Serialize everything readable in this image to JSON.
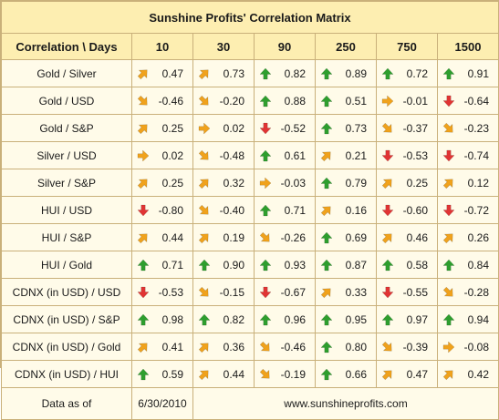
{
  "title": "Sunshine Profits' Correlation Matrix",
  "header": {
    "corner": "Correlation \\ Days",
    "periods": [
      "10",
      "30",
      "90",
      "250",
      "750",
      "1500"
    ]
  },
  "rows": [
    {
      "label": "Gold / Silver",
      "cells": [
        {
          "value": "0.47",
          "arrow": "up-right"
        },
        {
          "value": "0.73",
          "arrow": "up-right"
        },
        {
          "value": "0.82",
          "arrow": "up"
        },
        {
          "value": "0.89",
          "arrow": "up"
        },
        {
          "value": "0.72",
          "arrow": "up"
        },
        {
          "value": "0.91",
          "arrow": "up"
        }
      ]
    },
    {
      "label": "Gold / USD",
      "cells": [
        {
          "value": "-0.46",
          "arrow": "down-right"
        },
        {
          "value": "-0.20",
          "arrow": "down-right"
        },
        {
          "value": "0.88",
          "arrow": "up"
        },
        {
          "value": "0.51",
          "arrow": "up"
        },
        {
          "value": "-0.01",
          "arrow": "right"
        },
        {
          "value": "-0.64",
          "arrow": "down"
        }
      ]
    },
    {
      "label": "Gold / S&P",
      "cells": [
        {
          "value": "0.25",
          "arrow": "up-right"
        },
        {
          "value": "0.02",
          "arrow": "right"
        },
        {
          "value": "-0.52",
          "arrow": "down"
        },
        {
          "value": "0.73",
          "arrow": "up"
        },
        {
          "value": "-0.37",
          "arrow": "down-right"
        },
        {
          "value": "-0.23",
          "arrow": "down-right"
        }
      ]
    },
    {
      "label": "Silver / USD",
      "cells": [
        {
          "value": "0.02",
          "arrow": "right"
        },
        {
          "value": "-0.48",
          "arrow": "down-right"
        },
        {
          "value": "0.61",
          "arrow": "up"
        },
        {
          "value": "0.21",
          "arrow": "up-right"
        },
        {
          "value": "-0.53",
          "arrow": "down"
        },
        {
          "value": "-0.74",
          "arrow": "down"
        }
      ]
    },
    {
      "label": "Silver / S&P",
      "cells": [
        {
          "value": "0.25",
          "arrow": "up-right"
        },
        {
          "value": "0.32",
          "arrow": "up-right"
        },
        {
          "value": "-0.03",
          "arrow": "right"
        },
        {
          "value": "0.79",
          "arrow": "up"
        },
        {
          "value": "0.25",
          "arrow": "up-right"
        },
        {
          "value": "0.12",
          "arrow": "up-right"
        }
      ]
    },
    {
      "label": "HUI / USD",
      "cells": [
        {
          "value": "-0.80",
          "arrow": "down"
        },
        {
          "value": "-0.40",
          "arrow": "down-right"
        },
        {
          "value": "0.71",
          "arrow": "up"
        },
        {
          "value": "0.16",
          "arrow": "up-right"
        },
        {
          "value": "-0.60",
          "arrow": "down"
        },
        {
          "value": "-0.72",
          "arrow": "down"
        }
      ]
    },
    {
      "label": "HUI / S&P",
      "cells": [
        {
          "value": "0.44",
          "arrow": "up-right"
        },
        {
          "value": "0.19",
          "arrow": "up-right"
        },
        {
          "value": "-0.26",
          "arrow": "down-right"
        },
        {
          "value": "0.69",
          "arrow": "up"
        },
        {
          "value": "0.46",
          "arrow": "up-right"
        },
        {
          "value": "0.26",
          "arrow": "up-right"
        }
      ]
    },
    {
      "label": "HUI / Gold",
      "cells": [
        {
          "value": "0.71",
          "arrow": "up"
        },
        {
          "value": "0.90",
          "arrow": "up"
        },
        {
          "value": "0.93",
          "arrow": "up"
        },
        {
          "value": "0.87",
          "arrow": "up"
        },
        {
          "value": "0.58",
          "arrow": "up"
        },
        {
          "value": "0.84",
          "arrow": "up"
        }
      ]
    },
    {
      "label": "CDNX (in USD) / USD",
      "cells": [
        {
          "value": "-0.53",
          "arrow": "down"
        },
        {
          "value": "-0.15",
          "arrow": "down-right"
        },
        {
          "value": "-0.67",
          "arrow": "down"
        },
        {
          "value": "0.33",
          "arrow": "up-right"
        },
        {
          "value": "-0.55",
          "arrow": "down"
        },
        {
          "value": "-0.28",
          "arrow": "down-right"
        }
      ]
    },
    {
      "label": "CDNX (in USD) / S&P",
      "cells": [
        {
          "value": "0.98",
          "arrow": "up"
        },
        {
          "value": "0.82",
          "arrow": "up"
        },
        {
          "value": "0.96",
          "arrow": "up"
        },
        {
          "value": "0.95",
          "arrow": "up"
        },
        {
          "value": "0.97",
          "arrow": "up"
        },
        {
          "value": "0.94",
          "arrow": "up"
        }
      ]
    },
    {
      "label": "CDNX (in USD) / Gold",
      "cells": [
        {
          "value": "0.41",
          "arrow": "up-right"
        },
        {
          "value": "0.36",
          "arrow": "up-right"
        },
        {
          "value": "-0.46",
          "arrow": "down-right"
        },
        {
          "value": "0.80",
          "arrow": "up"
        },
        {
          "value": "-0.39",
          "arrow": "down-right"
        },
        {
          "value": "-0.08",
          "arrow": "right"
        }
      ]
    },
    {
      "label": "CDNX (in USD) / HUI",
      "cells": [
        {
          "value": "0.59",
          "arrow": "up"
        },
        {
          "value": "0.44",
          "arrow": "up-right"
        },
        {
          "value": "-0.19",
          "arrow": "down-right"
        },
        {
          "value": "0.66",
          "arrow": "up"
        },
        {
          "value": "0.47",
          "arrow": "up-right"
        },
        {
          "value": "0.42",
          "arrow": "up-right"
        }
      ]
    }
  ],
  "footer": {
    "label": "Data as of",
    "date": "6/30/2010",
    "site": "www.sunshineprofits.com"
  },
  "colors": {
    "up": "#2e9e2e",
    "up-right": "#f0a21c",
    "right": "#f0a21c",
    "down-right": "#f0a21c",
    "down": "#e03434"
  }
}
